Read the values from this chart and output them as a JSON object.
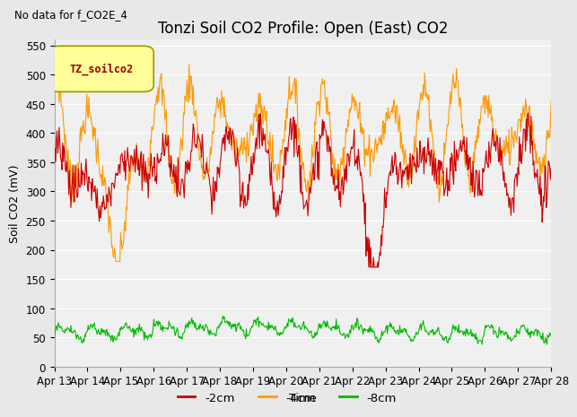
{
  "title": "Tonzi Soil CO2 Profile: Open (East) CO2",
  "no_data_text": "No data for f_CO2E_4",
  "ylabel": "Soil CO2 (mV)",
  "xlabel": "Time",
  "ylim": [
    0,
    560
  ],
  "yticks": [
    0,
    50,
    100,
    150,
    200,
    250,
    300,
    350,
    400,
    450,
    500,
    550
  ],
  "x_labels": [
    "Apr 13",
    "Apr 14",
    "Apr 15",
    "Apr 16",
    "Apr 17",
    "Apr 18",
    "Apr 19",
    "Apr 20",
    "Apr 21",
    "Apr 22",
    "Apr 23",
    "Apr 24",
    "Apr 25",
    "Apr 26",
    "Apr 27",
    "Apr 28"
  ],
  "legend_label": "TZ_soilco2",
  "line_labels": [
    "-2cm",
    "-4cm",
    "-8cm"
  ],
  "line_colors": [
    "#cc0000",
    "#ff9900",
    "#00bb00"
  ],
  "background_color": "#e8e8e8",
  "plot_bg_color": "#f0f0f0",
  "title_fontsize": 12,
  "tick_fontsize": 8.5,
  "legend_box_color": "#ffff99",
  "legend_box_edge": "#999900"
}
